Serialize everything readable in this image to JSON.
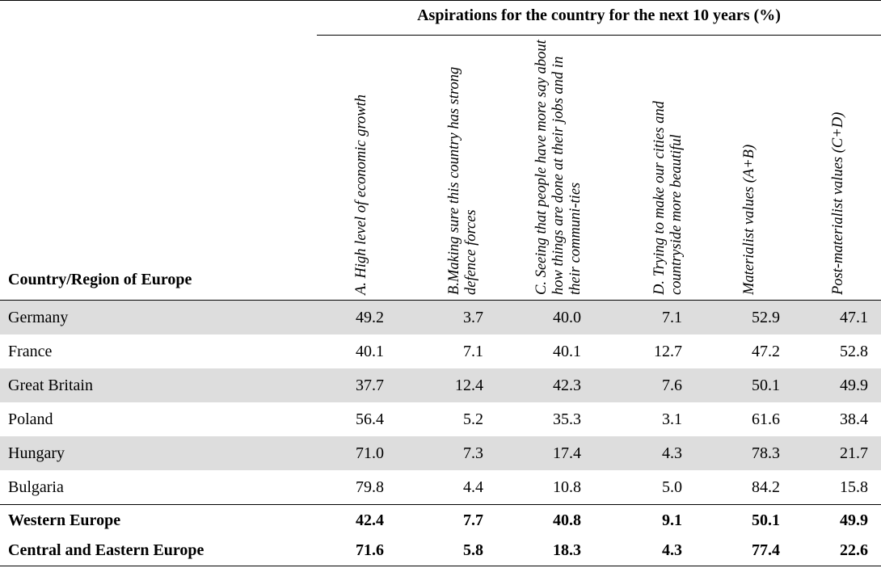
{
  "header": {
    "span_title": "Aspirations for the country for the next 10 years (%)",
    "row_label": "Country/Region of Europe",
    "columns": [
      "A. High level of economic growth",
      "B.Making sure this country has strong defence forces",
      "C. Seeing that people have more say about how things are done at their jobs and in their communi-ties",
      "D. Trying to make our cities and countryside more beautiful",
      "Materialist values (A+B)",
      "Post-materialist values (C+D)"
    ]
  },
  "rows": [
    {
      "label": "Germany",
      "values": [
        "49.2",
        "3.7",
        "40.0",
        "7.1",
        "52.9",
        "47.1"
      ]
    },
    {
      "label": "France",
      "values": [
        "40.1",
        "7.1",
        "40.1",
        "12.7",
        "47.2",
        "52.8"
      ]
    },
    {
      "label": "Great Britain",
      "values": [
        "37.7",
        "12.4",
        "42.3",
        "7.6",
        "50.1",
        "49.9"
      ]
    },
    {
      "label": "Poland",
      "values": [
        "56.4",
        "5.2",
        "35.3",
        "3.1",
        "61.6",
        "38.4"
      ]
    },
    {
      "label": "Hungary",
      "values": [
        "71.0",
        "7.3",
        "17.4",
        "4.3",
        "78.3",
        "21.7"
      ]
    },
    {
      "label": "Bulgaria",
      "values": [
        "79.8",
        "4.4",
        "10.8",
        "5.0",
        "84.2",
        "15.8"
      ]
    }
  ],
  "summary": [
    {
      "label": "Western Europe",
      "values": [
        "42.4",
        "7.7",
        "40.8",
        "9.1",
        "50.1",
        "49.9"
      ]
    },
    {
      "label": "Central and Eastern Europe",
      "values": [
        "71.6",
        "5.8",
        "18.3",
        "4.3",
        "77.4",
        "22.6"
      ]
    }
  ],
  "colors": {
    "shade": "#dddddd",
    "rule": "#000000"
  }
}
